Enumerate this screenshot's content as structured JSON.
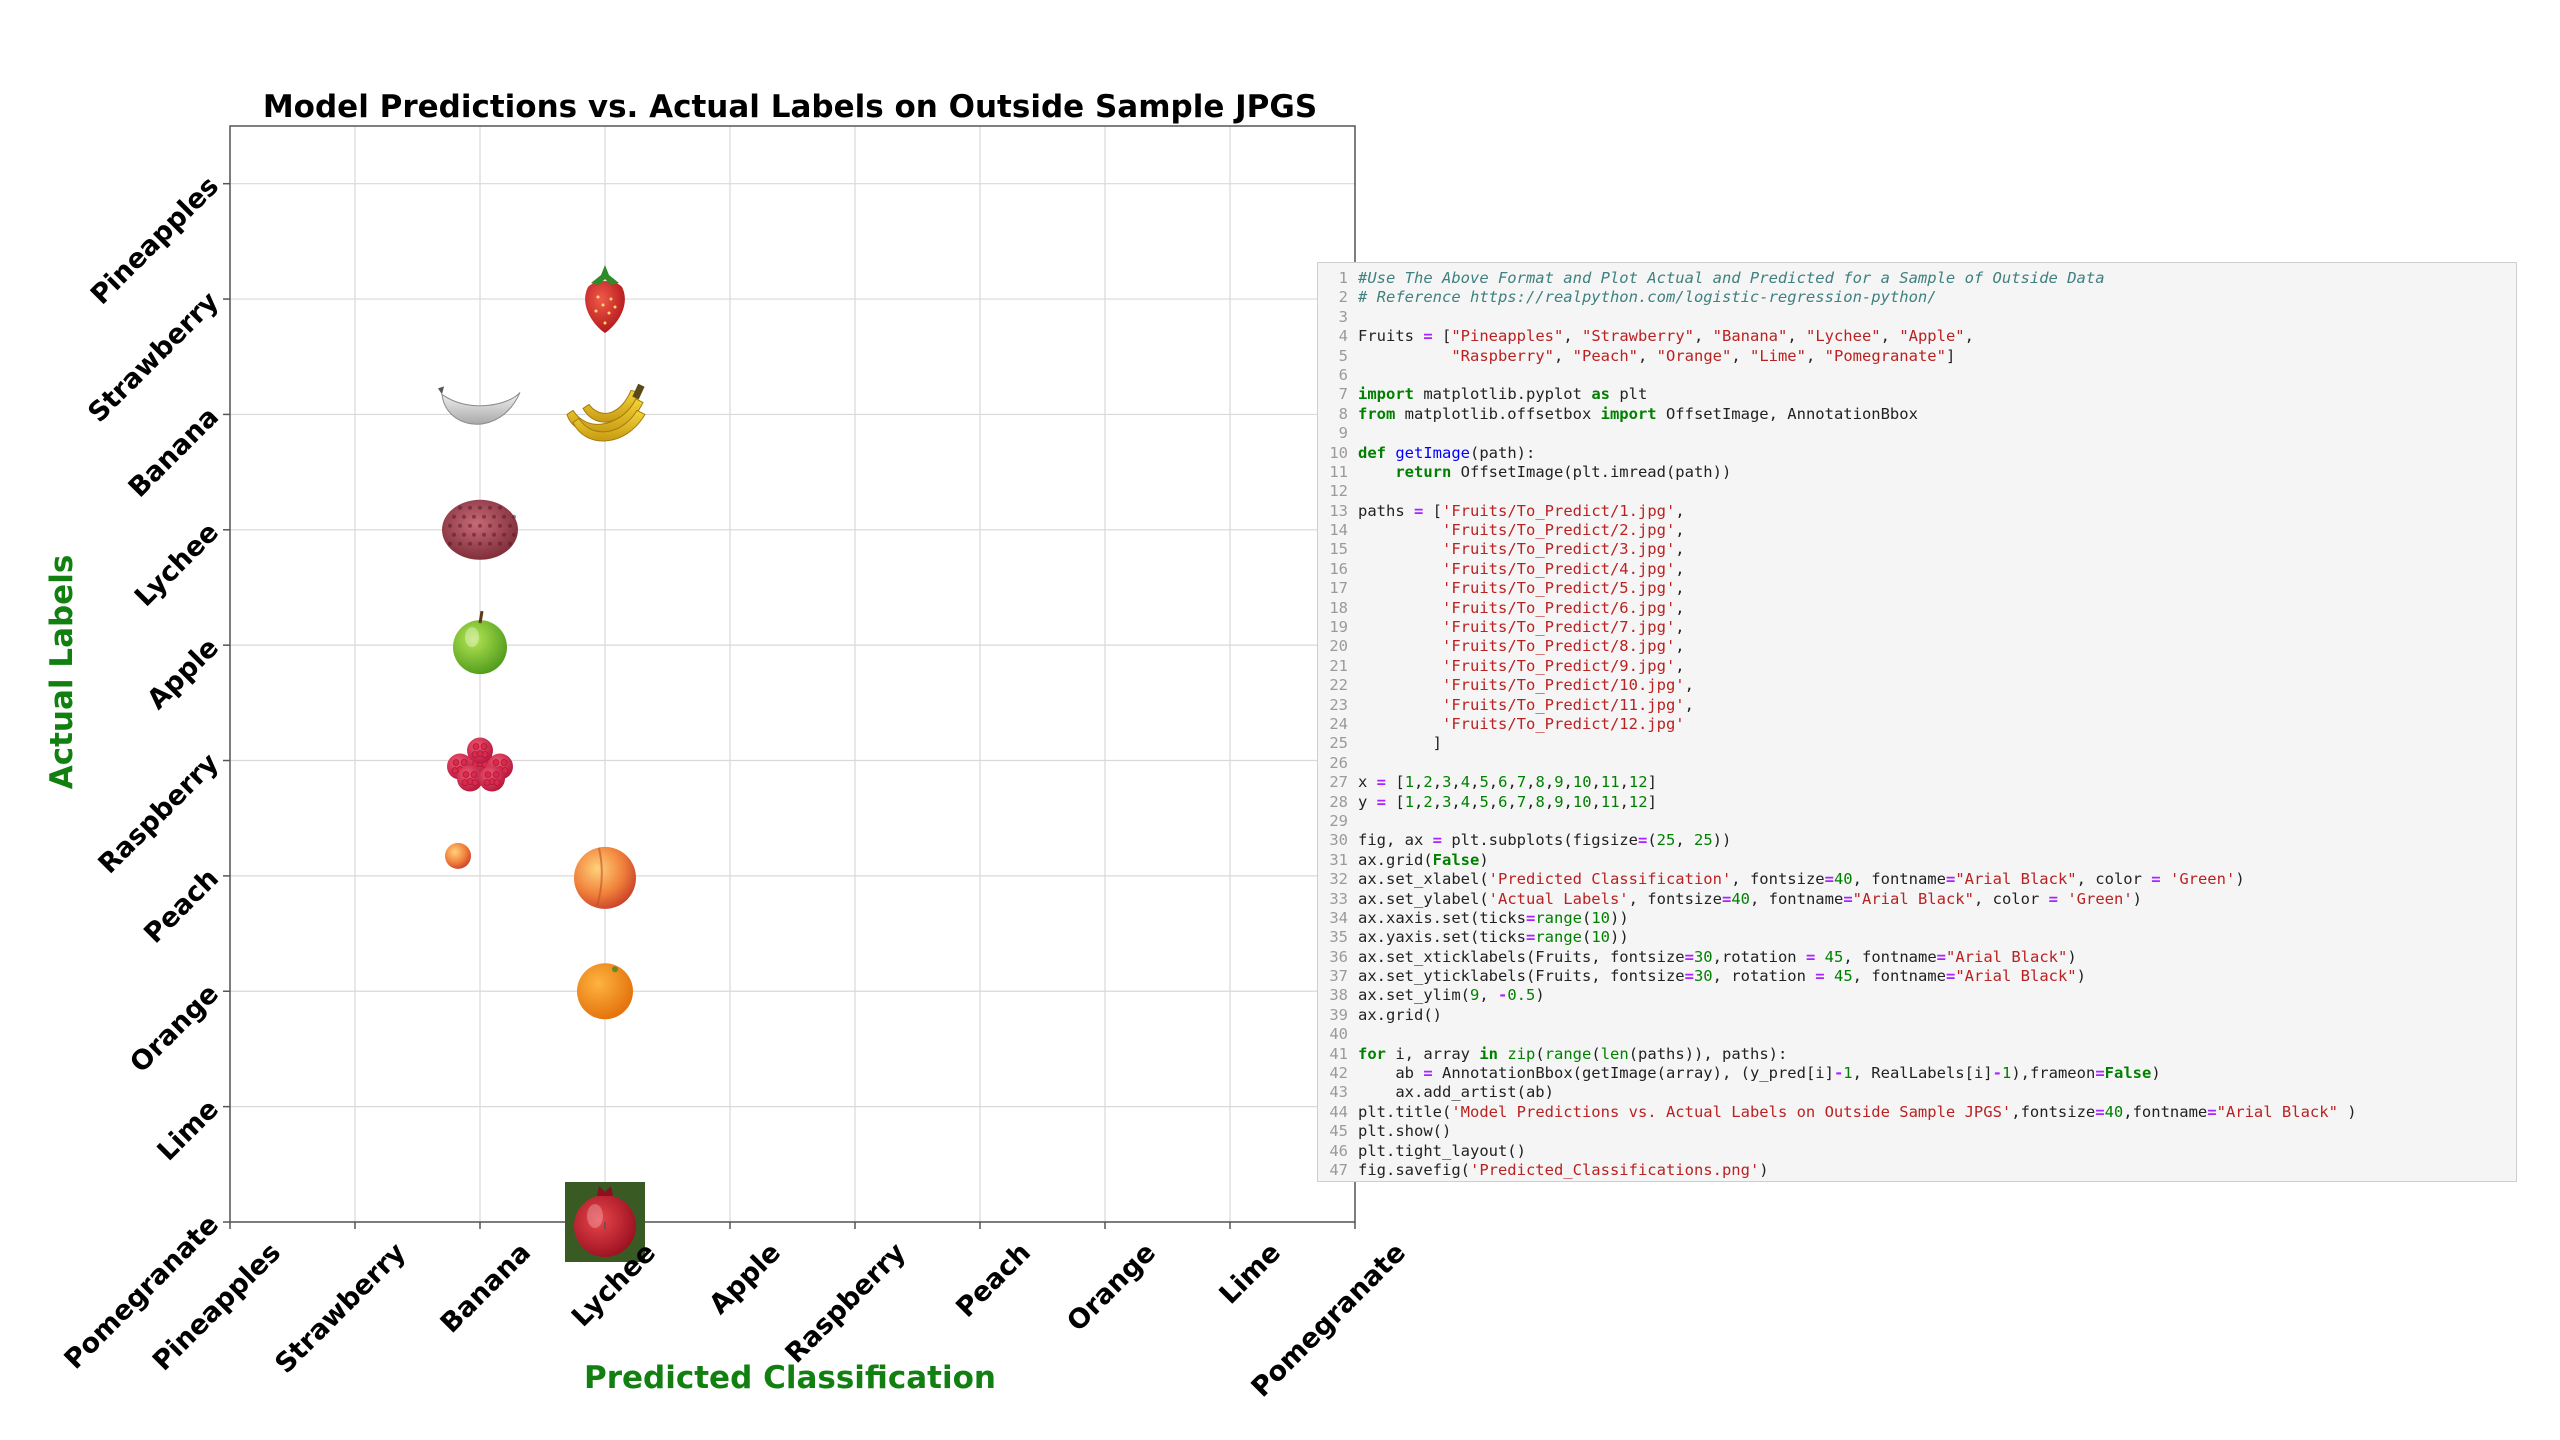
{
  "chart_data": {
    "type": "scatter",
    "title": "Model Predictions vs. Actual Labels on Outside Sample JPGS",
    "xlabel": "Predicted Classification",
    "ylabel": "Actual Labels",
    "x_categories": [
      "Pineapples",
      "Strawberry",
      "Banana",
      "Lychee",
      "Apple",
      "Raspberry",
      "Peach",
      "Orange",
      "Lime",
      "Pomegranate"
    ],
    "y_categories": [
      "Pineapples",
      "Strawberry",
      "Banana",
      "Lychee",
      "Apple",
      "Raspberry",
      "Peach",
      "Orange",
      "Lime",
      "Pomegranate"
    ],
    "xlim": [
      0,
      9
    ],
    "ylim": [
      9,
      -0.5
    ],
    "grid": true,
    "points": [
      {
        "x": "Lychee",
        "y": "Strawberry",
        "image": "strawberry"
      },
      {
        "x": "Banana",
        "y": "Banana",
        "image": "banana-bw"
      },
      {
        "x": "Lychee",
        "y": "Banana",
        "image": "banana"
      },
      {
        "x": "Banana",
        "y": "Lychee",
        "image": "lychee"
      },
      {
        "x": "Banana",
        "y": "Apple",
        "image": "apple"
      },
      {
        "x": "Banana",
        "y": "Raspberry",
        "image": "raspberries"
      },
      {
        "x": "Banana",
        "y": "Peach",
        "image": "peach-small"
      },
      {
        "x": "Lychee",
        "y": "Peach",
        "image": "peach"
      },
      {
        "x": "Lychee",
        "y": "Orange",
        "image": "orange"
      },
      {
        "x": "Lychee",
        "y": "Pomegranate",
        "image": "pomegranate"
      }
    ],
    "colors": {
      "axis_label": "#118011",
      "grid": "#d9d9d9",
      "spine": "#555555"
    }
  },
  "code": {
    "lines": [
      [
        [
          "comment",
          "#Use The Above Format and Plot Actual and Predicted for a Sample of Outside Data"
        ]
      ],
      [
        [
          "comment",
          "# Reference https://realpython.com/logistic-regression-python/"
        ]
      ],
      [],
      [
        [
          "plain",
          "Fruits "
        ],
        [
          "op",
          "="
        ],
        [
          "plain",
          " ["
        ],
        [
          "str",
          "\"Pineapples\""
        ],
        [
          "plain",
          ", "
        ],
        [
          "str",
          "\"Strawberry\""
        ],
        [
          "plain",
          ", "
        ],
        [
          "str",
          "\"Banana\""
        ],
        [
          "plain",
          ", "
        ],
        [
          "str",
          "\"Lychee\""
        ],
        [
          "plain",
          ", "
        ],
        [
          "str",
          "\"Apple\""
        ],
        [
          "plain",
          ","
        ]
      ],
      [
        [
          "plain",
          "          "
        ],
        [
          "str",
          "\"Raspberry\""
        ],
        [
          "plain",
          ", "
        ],
        [
          "str",
          "\"Peach\""
        ],
        [
          "plain",
          ", "
        ],
        [
          "str",
          "\"Orange\""
        ],
        [
          "plain",
          ", "
        ],
        [
          "str",
          "\"Lime\""
        ],
        [
          "plain",
          ", "
        ],
        [
          "str",
          "\"Pomegranate\""
        ],
        [
          "plain",
          "]"
        ]
      ],
      [],
      [
        [
          "kw",
          "import"
        ],
        [
          "plain",
          " matplotlib.pyplot "
        ],
        [
          "kw",
          "as"
        ],
        [
          "plain",
          " plt"
        ]
      ],
      [
        [
          "kw",
          "from"
        ],
        [
          "plain",
          " matplotlib.offsetbox "
        ],
        [
          "kw",
          "import"
        ],
        [
          "plain",
          " OffsetImage, AnnotationBbox"
        ]
      ],
      [],
      [
        [
          "kw",
          "def"
        ],
        [
          "plain",
          " "
        ],
        [
          "fn",
          "getImage"
        ],
        [
          "plain",
          "(path):"
        ]
      ],
      [
        [
          "plain",
          "    "
        ],
        [
          "kw",
          "return"
        ],
        [
          "plain",
          " OffsetImage(plt.imread(path))"
        ]
      ],
      [],
      [
        [
          "plain",
          "paths "
        ],
        [
          "op",
          "="
        ],
        [
          "plain",
          " ["
        ],
        [
          "str",
          "'Fruits/To_Predict/1.jpg'"
        ],
        [
          "plain",
          ","
        ]
      ],
      [
        [
          "plain",
          "         "
        ],
        [
          "str",
          "'Fruits/To_Predict/2.jpg'"
        ],
        [
          "plain",
          ","
        ]
      ],
      [
        [
          "plain",
          "         "
        ],
        [
          "str",
          "'Fruits/To_Predict/3.jpg'"
        ],
        [
          "plain",
          ","
        ]
      ],
      [
        [
          "plain",
          "         "
        ],
        [
          "str",
          "'Fruits/To_Predict/4.jpg'"
        ],
        [
          "plain",
          ","
        ]
      ],
      [
        [
          "plain",
          "         "
        ],
        [
          "str",
          "'Fruits/To_Predict/5.jpg'"
        ],
        [
          "plain",
          ","
        ]
      ],
      [
        [
          "plain",
          "         "
        ],
        [
          "str",
          "'Fruits/To_Predict/6.jpg'"
        ],
        [
          "plain",
          ","
        ]
      ],
      [
        [
          "plain",
          "         "
        ],
        [
          "str",
          "'Fruits/To_Predict/7.jpg'"
        ],
        [
          "plain",
          ","
        ]
      ],
      [
        [
          "plain",
          "         "
        ],
        [
          "str",
          "'Fruits/To_Predict/8.jpg'"
        ],
        [
          "plain",
          ","
        ]
      ],
      [
        [
          "plain",
          "         "
        ],
        [
          "str",
          "'Fruits/To_Predict/9.jpg'"
        ],
        [
          "plain",
          ","
        ]
      ],
      [
        [
          "plain",
          "         "
        ],
        [
          "str",
          "'Fruits/To_Predict/10.jpg'"
        ],
        [
          "plain",
          ","
        ]
      ],
      [
        [
          "plain",
          "         "
        ],
        [
          "str",
          "'Fruits/To_Predict/11.jpg'"
        ],
        [
          "plain",
          ","
        ]
      ],
      [
        [
          "plain",
          "         "
        ],
        [
          "str",
          "'Fruits/To_Predict/12.jpg'"
        ]
      ],
      [
        [
          "plain",
          "        ]"
        ]
      ],
      [],
      [
        [
          "plain",
          "x "
        ],
        [
          "op",
          "="
        ],
        [
          "plain",
          " ["
        ],
        [
          "num",
          "1"
        ],
        [
          "plain",
          ","
        ],
        [
          "num",
          "2"
        ],
        [
          "plain",
          ","
        ],
        [
          "num",
          "3"
        ],
        [
          "plain",
          ","
        ],
        [
          "num",
          "4"
        ],
        [
          "plain",
          ","
        ],
        [
          "num",
          "5"
        ],
        [
          "plain",
          ","
        ],
        [
          "num",
          "6"
        ],
        [
          "plain",
          ","
        ],
        [
          "num",
          "7"
        ],
        [
          "plain",
          ","
        ],
        [
          "num",
          "8"
        ],
        [
          "plain",
          ","
        ],
        [
          "num",
          "9"
        ],
        [
          "plain",
          ","
        ],
        [
          "num",
          "10"
        ],
        [
          "plain",
          ","
        ],
        [
          "num",
          "11"
        ],
        [
          "plain",
          ","
        ],
        [
          "num",
          "12"
        ],
        [
          "plain",
          "]"
        ]
      ],
      [
        [
          "plain",
          "y "
        ],
        [
          "op",
          "="
        ],
        [
          "plain",
          " ["
        ],
        [
          "num",
          "1"
        ],
        [
          "plain",
          ","
        ],
        [
          "num",
          "2"
        ],
        [
          "plain",
          ","
        ],
        [
          "num",
          "3"
        ],
        [
          "plain",
          ","
        ],
        [
          "num",
          "4"
        ],
        [
          "plain",
          ","
        ],
        [
          "num",
          "5"
        ],
        [
          "plain",
          ","
        ],
        [
          "num",
          "6"
        ],
        [
          "plain",
          ","
        ],
        [
          "num",
          "7"
        ],
        [
          "plain",
          ","
        ],
        [
          "num",
          "8"
        ],
        [
          "plain",
          ","
        ],
        [
          "num",
          "9"
        ],
        [
          "plain",
          ","
        ],
        [
          "num",
          "10"
        ],
        [
          "plain",
          ","
        ],
        [
          "num",
          "11"
        ],
        [
          "plain",
          ","
        ],
        [
          "num",
          "12"
        ],
        [
          "plain",
          "]"
        ]
      ],
      [],
      [
        [
          "plain",
          "fig, ax "
        ],
        [
          "op",
          "="
        ],
        [
          "plain",
          " plt.subplots(figsize"
        ],
        [
          "op",
          "="
        ],
        [
          "plain",
          "("
        ],
        [
          "num",
          "25"
        ],
        [
          "plain",
          ", "
        ],
        [
          "num",
          "25"
        ],
        [
          "plain",
          "))"
        ]
      ],
      [
        [
          "plain",
          "ax.grid("
        ],
        [
          "kw",
          "False"
        ],
        [
          "plain",
          ")"
        ]
      ],
      [
        [
          "plain",
          "ax.set_xlabel("
        ],
        [
          "str",
          "'Predicted Classification'"
        ],
        [
          "plain",
          ", fontsize"
        ],
        [
          "op",
          "="
        ],
        [
          "num",
          "40"
        ],
        [
          "plain",
          ", fontname"
        ],
        [
          "op",
          "="
        ],
        [
          "str",
          "\"Arial Black\""
        ],
        [
          "plain",
          ", color "
        ],
        [
          "op",
          "="
        ],
        [
          "plain",
          " "
        ],
        [
          "str",
          "'Green'"
        ],
        [
          "plain",
          ")"
        ]
      ],
      [
        [
          "plain",
          "ax.set_ylabel("
        ],
        [
          "str",
          "'Actual Labels'"
        ],
        [
          "plain",
          ", fontsize"
        ],
        [
          "op",
          "="
        ],
        [
          "num",
          "40"
        ],
        [
          "plain",
          ", fontname"
        ],
        [
          "op",
          "="
        ],
        [
          "str",
          "\"Arial Black\""
        ],
        [
          "plain",
          ", color "
        ],
        [
          "op",
          "="
        ],
        [
          "plain",
          " "
        ],
        [
          "str",
          "'Green'"
        ],
        [
          "plain",
          ")"
        ]
      ],
      [
        [
          "plain",
          "ax.xaxis.set(ticks"
        ],
        [
          "op",
          "="
        ],
        [
          "bi",
          "range"
        ],
        [
          "plain",
          "("
        ],
        [
          "num",
          "10"
        ],
        [
          "plain",
          "))"
        ]
      ],
      [
        [
          "plain",
          "ax.yaxis.set(ticks"
        ],
        [
          "op",
          "="
        ],
        [
          "bi",
          "range"
        ],
        [
          "plain",
          "("
        ],
        [
          "num",
          "10"
        ],
        [
          "plain",
          "))"
        ]
      ],
      [
        [
          "plain",
          "ax.set_xticklabels(Fruits, fontsize"
        ],
        [
          "op",
          "="
        ],
        [
          "num",
          "30"
        ],
        [
          "plain",
          ",rotation "
        ],
        [
          "op",
          "="
        ],
        [
          "plain",
          " "
        ],
        [
          "num",
          "45"
        ],
        [
          "plain",
          ", fontname"
        ],
        [
          "op",
          "="
        ],
        [
          "str",
          "\"Arial Black\""
        ],
        [
          "plain",
          ")"
        ]
      ],
      [
        [
          "plain",
          "ax.set_yticklabels(Fruits, fontsize"
        ],
        [
          "op",
          "="
        ],
        [
          "num",
          "30"
        ],
        [
          "plain",
          ", rotation "
        ],
        [
          "op",
          "="
        ],
        [
          "plain",
          " "
        ],
        [
          "num",
          "45"
        ],
        [
          "plain",
          ", fontname"
        ],
        [
          "op",
          "="
        ],
        [
          "str",
          "\"Arial Black\""
        ],
        [
          "plain",
          ")"
        ]
      ],
      [
        [
          "plain",
          "ax.set_ylim("
        ],
        [
          "num",
          "9"
        ],
        [
          "plain",
          ", "
        ],
        [
          "op",
          "-"
        ],
        [
          "num",
          "0.5"
        ],
        [
          "plain",
          ")"
        ]
      ],
      [
        [
          "plain",
          "ax.grid()"
        ]
      ],
      [],
      [
        [
          "kw",
          "for"
        ],
        [
          "plain",
          " i, array "
        ],
        [
          "kw",
          "in"
        ],
        [
          "plain",
          " "
        ],
        [
          "bi",
          "zip"
        ],
        [
          "plain",
          "("
        ],
        [
          "bi",
          "range"
        ],
        [
          "plain",
          "("
        ],
        [
          "bi",
          "len"
        ],
        [
          "plain",
          "(paths)), paths):"
        ]
      ],
      [
        [
          "plain",
          "    ab "
        ],
        [
          "op",
          "="
        ],
        [
          "plain",
          " AnnotationBbox(getImage(array), (y_pred[i]"
        ],
        [
          "op",
          "-"
        ],
        [
          "num",
          "1"
        ],
        [
          "plain",
          ", RealLabels[i]"
        ],
        [
          "op",
          "-"
        ],
        [
          "num",
          "1"
        ],
        [
          "plain",
          "),frameon"
        ],
        [
          "op",
          "="
        ],
        [
          "kw",
          "False"
        ],
        [
          "plain",
          ")"
        ]
      ],
      [
        [
          "plain",
          "    ax.add_artist(ab)"
        ]
      ],
      [
        [
          "plain",
          "plt.title("
        ],
        [
          "str",
          "'Model Predictions vs. Actual Labels on Outside Sample JPGS'"
        ],
        [
          "plain",
          ",fontsize"
        ],
        [
          "op",
          "="
        ],
        [
          "num",
          "40"
        ],
        [
          "plain",
          ",fontname"
        ],
        [
          "op",
          "="
        ],
        [
          "str",
          "\"Arial Black\""
        ],
        [
          "plain",
          " )"
        ]
      ],
      [
        [
          "plain",
          "plt.show()"
        ]
      ],
      [
        [
          "plain",
          "plt.tight_layout()"
        ]
      ],
      [
        [
          "plain",
          "fig.savefig("
        ],
        [
          "str",
          "'Predicted_Classifications.png'"
        ],
        [
          "plain",
          ")"
        ]
      ]
    ]
  }
}
